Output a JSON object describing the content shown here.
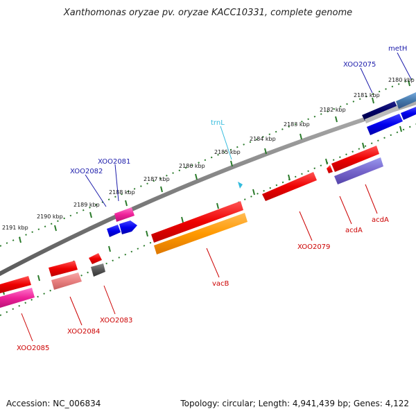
{
  "title": "Xanthomonas oryzae pv. oryzae KACC10331, complete genome",
  "footer": {
    "accession": "Accession: NC_006834",
    "summary": "Topology: circular; Length: 4,941,439 bp; Genes: 4,122"
  },
  "ruler_labels": [
    "2180 kbp",
    "2181 kbp",
    "2182 kbp",
    "2183 kbp",
    "2184 kbp",
    "2185 kbp",
    "2186 kbp",
    "2187 kbp",
    "2188 kbp",
    "2189 kbp",
    "2190 kbp",
    "2191 kbp"
  ],
  "gene_labels": [
    {
      "text": "metH",
      "color": "#1a1aaa"
    },
    {
      "text": "XOO2075",
      "color": "#1a1aaa"
    },
    {
      "text": "trnL",
      "color": "#33bbdd"
    },
    {
      "text": "XOO2081",
      "color": "#1a1aaa"
    },
    {
      "text": "XOO2082",
      "color": "#1a1aaa"
    },
    {
      "text": "acdA",
      "color": "#cc0000"
    },
    {
      "text": "acdA",
      "color": "#cc0000"
    },
    {
      "text": "XOO2079",
      "color": "#cc0000"
    },
    {
      "text": "vacB",
      "color": "#cc0000"
    },
    {
      "text": "XOO2083",
      "color": "#cc0000"
    },
    {
      "text": "XOO2084",
      "color": "#cc0000"
    },
    {
      "text": "XOO2085",
      "color": "#cc0000"
    }
  ],
  "colors": {
    "backbone": "#8a8a8a",
    "ruler": "#2a7a2a",
    "forward_gene": "#0000ee",
    "reverse_gene": "#ee0000",
    "trna": "#33bbdd"
  }
}
